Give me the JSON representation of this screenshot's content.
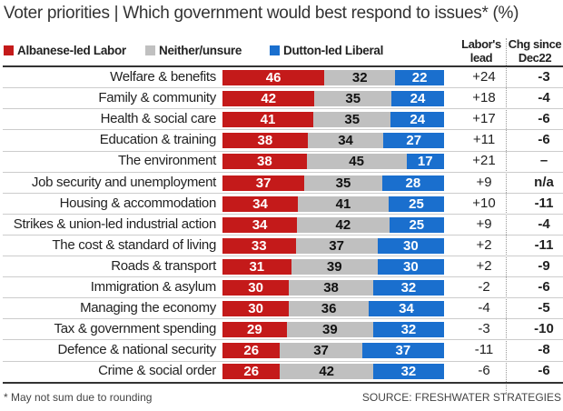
{
  "chart_data": {
    "type": "bar",
    "orientation": "horizontal",
    "stacked": true,
    "title": "Voter priorities | Which government would best respond to issues* (%)",
    "categories": [
      "Welfare & benefits",
      "Family & community",
      "Health & social care",
      "Education & training",
      "The environment",
      "Job security and unemployment",
      "Housing & accommodation",
      "Strikes & union-led industrial action",
      "The cost & standard of living",
      "Roads & transport",
      "Immigration & asylum",
      "Managing the economy",
      "Tax & government spending",
      "Defence & national security",
      "Crime & social order"
    ],
    "series": [
      {
        "name": "Albanese-led Labor",
        "color": "#c41a1a",
        "values": [
          46,
          42,
          41,
          38,
          38,
          37,
          34,
          34,
          33,
          31,
          30,
          30,
          29,
          26,
          26
        ]
      },
      {
        "name": "Neither/unsure",
        "color": "#c0c0c0",
        "values": [
          32,
          35,
          35,
          34,
          45,
          35,
          41,
          42,
          37,
          39,
          38,
          36,
          39,
          37,
          42
        ]
      },
      {
        "name": "Dutton-led Liberal",
        "color": "#1a6fce",
        "values": [
          22,
          24,
          24,
          27,
          17,
          28,
          25,
          25,
          30,
          30,
          32,
          34,
          32,
          37,
          32
        ]
      }
    ],
    "columns": [
      {
        "header": "Labor's lead",
        "values": [
          "+24",
          "+18",
          "+17",
          "+11",
          "+21",
          "+9",
          "+10",
          "+9",
          "+2",
          "+2",
          "-2",
          "-4",
          "-3",
          "-11",
          "-6"
        ]
      },
      {
        "header": "Chg since Dec22",
        "values": [
          "-3",
          "-4",
          "-6",
          "-6",
          "–",
          "n/a",
          "-11",
          "-4",
          "-11",
          "-9",
          "-6",
          "-5",
          "-10",
          "-8",
          "-6"
        ]
      }
    ],
    "legend": "top",
    "grid": false
  },
  "labels": {
    "lead_header": "Labor's lead",
    "chg_header": "Chg since Dec22"
  },
  "footer": {
    "note": "* May not sum due to rounding",
    "source": "SOURCE: FRESHWATER STRATEGIES"
  }
}
